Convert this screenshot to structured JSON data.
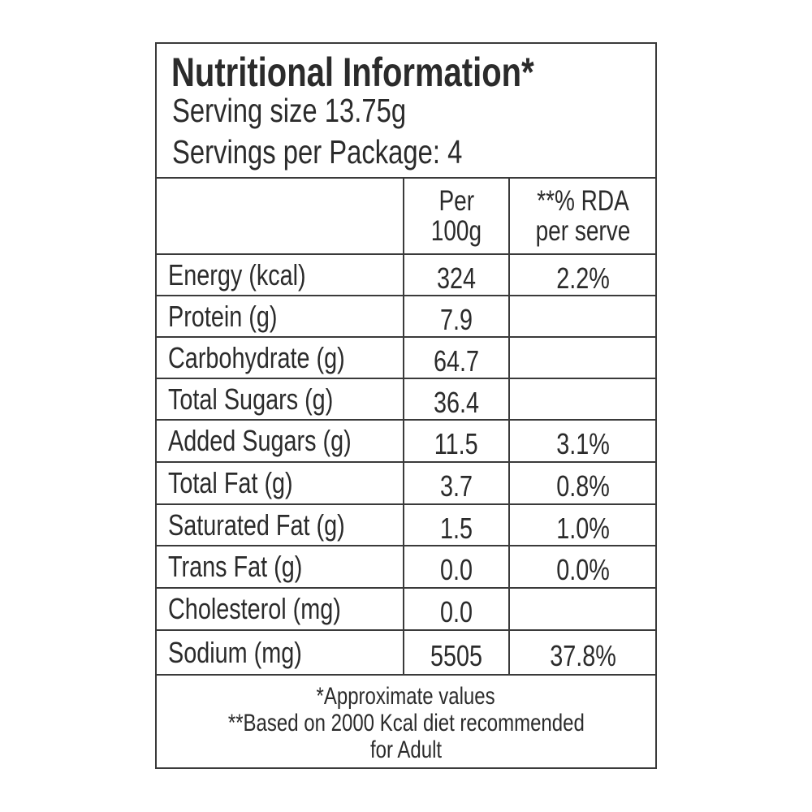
{
  "header": {
    "title": "Nutritional Information*",
    "serving_size": "Serving size 13.75g",
    "servings": "Servings per Package: 4"
  },
  "table": {
    "column_headers": [
      [
        "Per",
        "100g"
      ],
      [
        "**% RDA",
        "per serve"
      ]
    ],
    "rows": [
      [
        "Energy (kcal)",
        "324",
        "2.2%"
      ],
      [
        "Protein (g)",
        "7.9",
        null
      ],
      [
        "Carbohydrate (g)",
        "64.7",
        null
      ],
      [
        "Total Sugars (g)",
        "36.4",
        null
      ],
      [
        "Added Sugars (g)",
        "11.5",
        "3.1%"
      ],
      [
        "Total Fat (g)",
        "3.7",
        "0.8%"
      ],
      [
        "Saturated Fat (g)",
        "1.5",
        "1.0%"
      ],
      [
        "Trans Fat (g)",
        "0.0",
        "0.0%"
      ],
      [
        "Cholesterol (mg)",
        "0.0",
        null
      ],
      [
        "Sodium (mg)",
        "5505",
        "37.8%"
      ]
    ]
  },
  "footer": {
    "notes": [
      "*Approximate values",
      "**Based on 2000 Kcal diet recommended",
      "for Adult"
    ]
  }
}
